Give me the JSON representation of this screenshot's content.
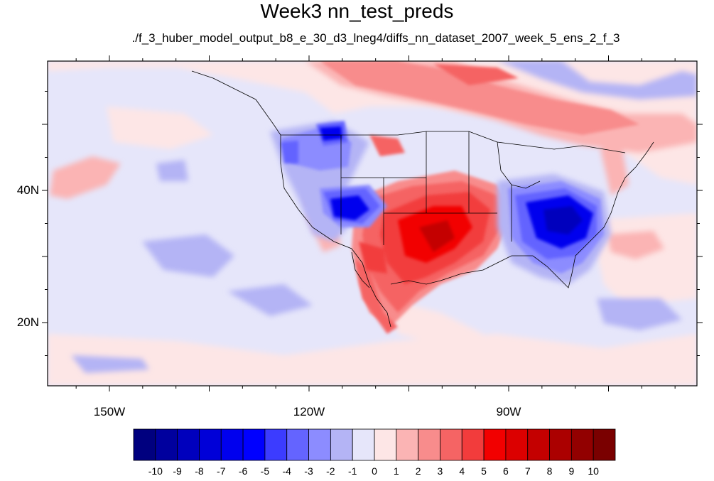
{
  "title": "Week3 nn_test_preds",
  "subtitle": "./f_3_huber_model_output_b8_e_30_d3_lneg4/diffs_nn_dataset_2007_week_5_ens_2_f_3",
  "lat_ticks": [
    {
      "value": 40,
      "label": "40N"
    },
    {
      "value": 20,
      "label": "20N"
    }
  ],
  "lon_ticks": [
    {
      "value": -150,
      "label": "150W"
    },
    {
      "value": -120,
      "label": "120W"
    },
    {
      "value": -90,
      "label": "90W"
    }
  ],
  "colorbar": {
    "labels": [
      "-10",
      "-9",
      "-8",
      "-7",
      "-6",
      "-5",
      "-4",
      "-3",
      "-2",
      "-1",
      "0",
      "1",
      "2",
      "3",
      "4",
      "5",
      "6",
      "7",
      "8",
      "9",
      "10"
    ],
    "colors": [
      "#00007f",
      "#00009e",
      "#0000bd",
      "#0000d8",
      "#0000ee",
      "#0000ff",
      "#3c3cff",
      "#6464ff",
      "#8c8cff",
      "#b4b4f5",
      "#e6e6fa",
      "#fde6e6",
      "#fbb4b4",
      "#f88c8c",
      "#f56464",
      "#f23c3c",
      "#f20000",
      "#dc0000",
      "#c40000",
      "#ab0000",
      "#920000",
      "#7a0000"
    ]
  },
  "colors": {
    "background_field": "#e6e6fa",
    "coastline": "#000000"
  }
}
